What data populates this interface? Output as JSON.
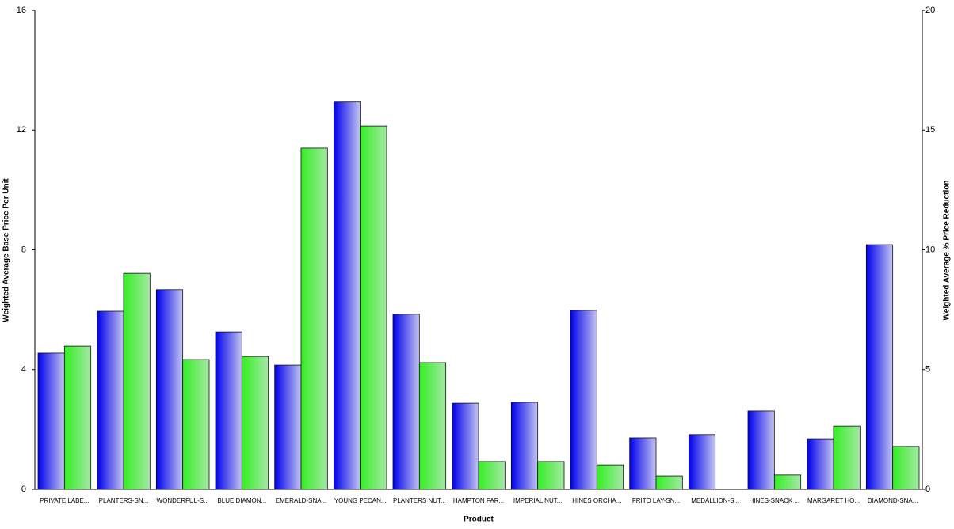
{
  "chart_data": {
    "type": "bar",
    "x_label": "Product",
    "y_label": "Weighted Average Base Price Per Unit",
    "y2_label": "Weighted Average % Price Reduction",
    "categories": [
      "PRIVATE LABE...",
      "PLANTERS-SN...",
      "WONDERFUL-S...",
      "BLUE DIAMON...",
      "EMERALD-SNA...",
      "YOUNG PECAN...",
      "PLANTERS NUT...",
      "HAMPTON FAR...",
      "IMPERIAL NUT...",
      "HINES ORCHA...",
      "FRITO LAY-SN...",
      "MEDALLION-S...",
      "HINES-SNACK ...",
      "MARGARET HO...",
      "DIAMOND-SNA..."
    ],
    "series": [
      {
        "color": "#0000ee",
        "values": [
          4.55,
          5.95,
          6.67,
          5.26,
          4.15,
          12.94,
          5.85,
          2.88,
          2.91,
          5.98,
          1.72,
          1.83,
          2.62,
          1.69,
          8.17
        ]
      },
      {
        "color": "#33ee22",
        "axis": "y2",
        "values": [
          5.98,
          9.02,
          5.42,
          5.55,
          14.25,
          15.17,
          5.29,
          1.16,
          1.16,
          1.02,
          0.56,
          null,
          0.6,
          2.64,
          1.79
        ]
      }
    ],
    "ylim": [
      0,
      16
    ],
    "yticks": [
      0,
      4,
      8,
      12,
      16
    ],
    "y2lim": [
      0,
      20
    ],
    "y2ticks": [
      0,
      5,
      10,
      15,
      20
    ]
  }
}
